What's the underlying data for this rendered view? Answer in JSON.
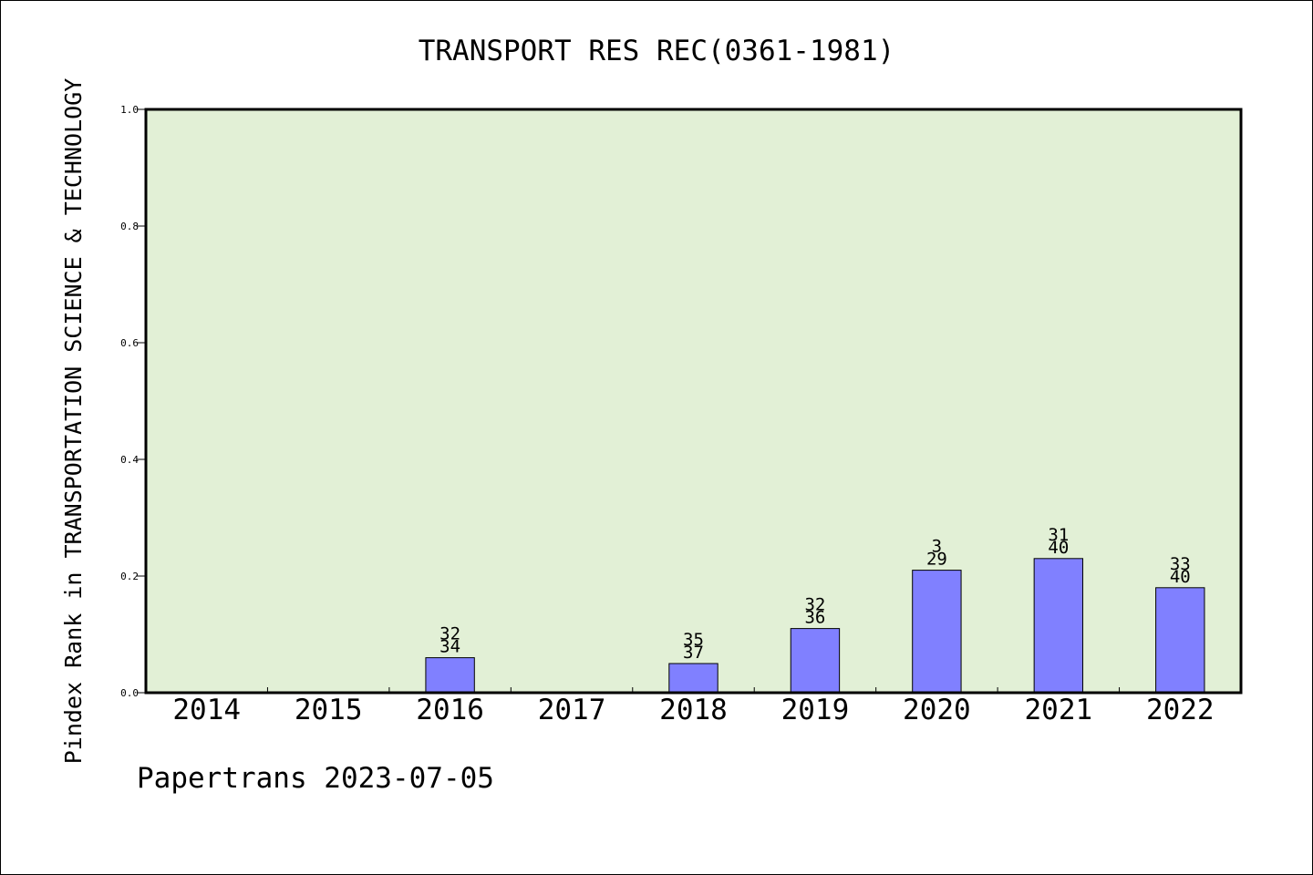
{
  "chart_data": {
    "type": "bar",
    "title": "TRANSPORT RES REC(0361-1981)",
    "ylabel": "Pindex Rank in TRANSPORTATION SCIENCE & TECHNOLOGY",
    "xlabel": "",
    "categories": [
      "2014",
      "2015",
      "2016",
      "2017",
      "2018",
      "2019",
      "2020",
      "2021",
      "2022"
    ],
    "values": [
      null,
      null,
      0.06,
      null,
      0.05,
      0.11,
      0.21,
      0.23,
      0.18
    ],
    "bar_labels": [
      null,
      null,
      [
        "32",
        "34"
      ],
      null,
      [
        "35",
        "37"
      ],
      [
        "32",
        "36"
      ],
      [
        "3",
        "29"
      ],
      [
        "31",
        "40"
      ],
      [
        "33",
        "40"
      ]
    ],
    "ylim": [
      0,
      1.0
    ],
    "yticks": [
      "0.0",
      "0.2",
      "0.4",
      "0.6",
      "0.8",
      "1.0"
    ],
    "grid": false,
    "legend": "none",
    "colors": {
      "plot_background": "#e2f0d6",
      "bar_fill": "#8080ff",
      "bar_stroke": "#000000"
    }
  },
  "footer": "Papertrans 2023-07-05"
}
